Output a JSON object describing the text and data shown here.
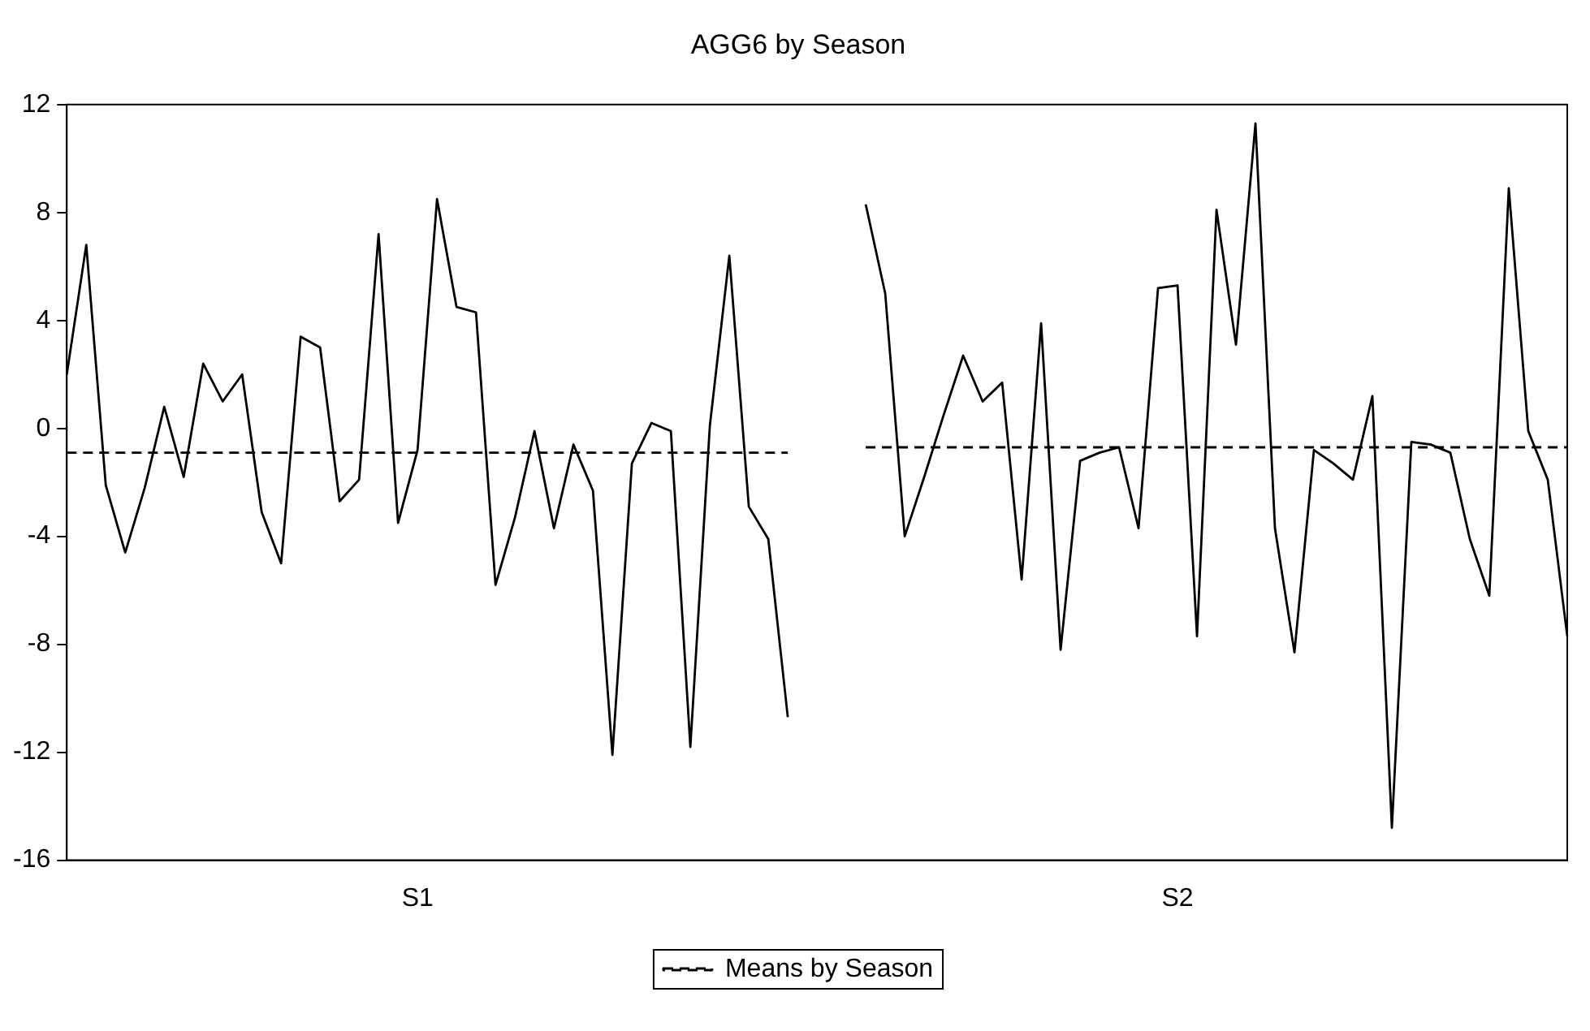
{
  "chart_data": {
    "type": "line",
    "title": "AGG6 by Season",
    "categories": [
      null,
      null,
      null,
      null,
      null,
      null,
      null,
      null,
      null,
      null,
      null,
      null,
      null,
      null,
      null,
      null,
      null,
      null,
      "S1",
      null,
      null,
      null,
      null,
      null,
      null,
      null,
      null,
      null,
      null,
      null,
      null,
      null,
      null,
      null,
      null,
      null,
      null,
      null,
      null,
      null,
      null,
      null,
      null,
      null,
      null,
      null,
      null,
      null,
      null,
      null,
      null,
      null,
      null,
      null,
      null,
      null,
      null,
      "S2",
      null,
      null,
      null,
      null,
      null,
      null,
      null,
      null,
      null,
      null,
      null,
      null,
      null,
      null,
      null,
      null,
      null,
      null,
      null,
      null
    ],
    "ylim": [
      -16,
      12
    ],
    "yticks": [
      -16,
      -12,
      -8,
      -4,
      0,
      4,
      8,
      12
    ],
    "legend": "bottom",
    "series": [
      {
        "color": "#000000",
        "line_style": "solid",
        "values": [
          2.0,
          6.8,
          -2.1,
          -4.6,
          -2.2,
          0.8,
          -1.8,
          2.4,
          1.0,
          2.0,
          -3.1,
          -5.0,
          3.4,
          3.0,
          -2.7,
          -1.9,
          7.2,
          -3.5,
          -0.8,
          8.5,
          4.5,
          4.3,
          -5.8,
          -3.3,
          -0.1,
          -3.7,
          -0.6,
          -2.3,
          -12.1,
          -1.3,
          0.2,
          -0.1,
          -11.8,
          0.1,
          6.4,
          -2.9,
          -4.1,
          -10.7,
          null,
          null,
          null,
          null,
          null,
          null,
          null,
          null,
          null,
          null,
          null,
          null,
          null,
          null,
          null,
          null,
          null,
          null,
          null,
          null,
          null,
          null,
          null,
          null,
          null,
          null,
          null,
          null,
          null,
          null,
          null,
          null,
          null,
          null,
          null,
          null,
          null,
          null,
          null,
          null
        ]
      },
      {
        "color": "#000000",
        "line_style": "solid",
        "values": [
          null,
          null,
          null,
          null,
          null,
          null,
          null,
          null,
          null,
          null,
          null,
          null,
          null,
          null,
          null,
          null,
          null,
          null,
          null,
          null,
          null,
          null,
          null,
          null,
          null,
          null,
          null,
          null,
          null,
          null,
          null,
          null,
          null,
          null,
          null,
          null,
          null,
          null,
          null,
          null,
          null,
          8.3,
          5.0,
          -4.0,
          -1.8,
          0.5,
          2.7,
          1.0,
          1.7,
          -5.6,
          3.9,
          -8.2,
          -1.2,
          -0.9,
          -0.7,
          -3.7,
          5.2,
          5.3,
          -7.7,
          8.1,
          3.1,
          11.3,
          -3.7,
          -8.3,
          -0.8,
          -1.3,
          -1.9,
          1.2,
          -14.8,
          -0.5,
          -0.6,
          -0.9,
          -4.1,
          -6.2,
          8.9,
          -0.1,
          -1.9,
          -7.7
        ]
      },
      {
        "name": "Means by Season",
        "color": "#000000",
        "line_style": "dashed",
        "values": [
          -0.9,
          -0.9,
          -0.9,
          -0.9,
          -0.9,
          -0.9,
          -0.9,
          -0.9,
          -0.9,
          -0.9,
          -0.9,
          -0.9,
          -0.9,
          -0.9,
          -0.9,
          -0.9,
          -0.9,
          -0.9,
          -0.9,
          -0.9,
          -0.9,
          -0.9,
          -0.9,
          -0.9,
          -0.9,
          -0.9,
          -0.9,
          -0.9,
          -0.9,
          -0.9,
          -0.9,
          -0.9,
          -0.9,
          -0.9,
          -0.9,
          -0.9,
          -0.9,
          -0.9,
          null,
          null,
          null,
          null,
          null,
          null,
          null,
          null,
          null,
          null,
          null,
          null,
          null,
          null,
          null,
          null,
          null,
          null,
          null,
          null,
          null,
          null,
          null,
          null,
          null,
          null,
          null,
          null,
          null,
          null,
          null,
          null,
          null,
          null,
          null,
          null,
          null,
          null,
          null,
          null
        ]
      },
      {
        "color": "#000000",
        "line_style": "dashed",
        "values": [
          null,
          null,
          null,
          null,
          null,
          null,
          null,
          null,
          null,
          null,
          null,
          null,
          null,
          null,
          null,
          null,
          null,
          null,
          null,
          null,
          null,
          null,
          null,
          null,
          null,
          null,
          null,
          null,
          null,
          null,
          null,
          null,
          null,
          null,
          null,
          null,
          null,
          null,
          null,
          null,
          null,
          -0.7,
          -0.7,
          -0.7,
          -0.7,
          -0.7,
          -0.7,
          -0.7,
          -0.7,
          -0.7,
          -0.7,
          -0.7,
          -0.7,
          -0.7,
          -0.7,
          -0.7,
          -0.7,
          -0.7,
          -0.7,
          -0.7,
          -0.7,
          -0.7,
          -0.7,
          -0.7,
          -0.7,
          -0.7,
          -0.7,
          -0.7,
          -0.7,
          -0.7,
          -0.7,
          -0.7,
          -0.7,
          -0.7,
          -0.7,
          -0.7,
          -0.7,
          -0.7
        ]
      }
    ]
  }
}
